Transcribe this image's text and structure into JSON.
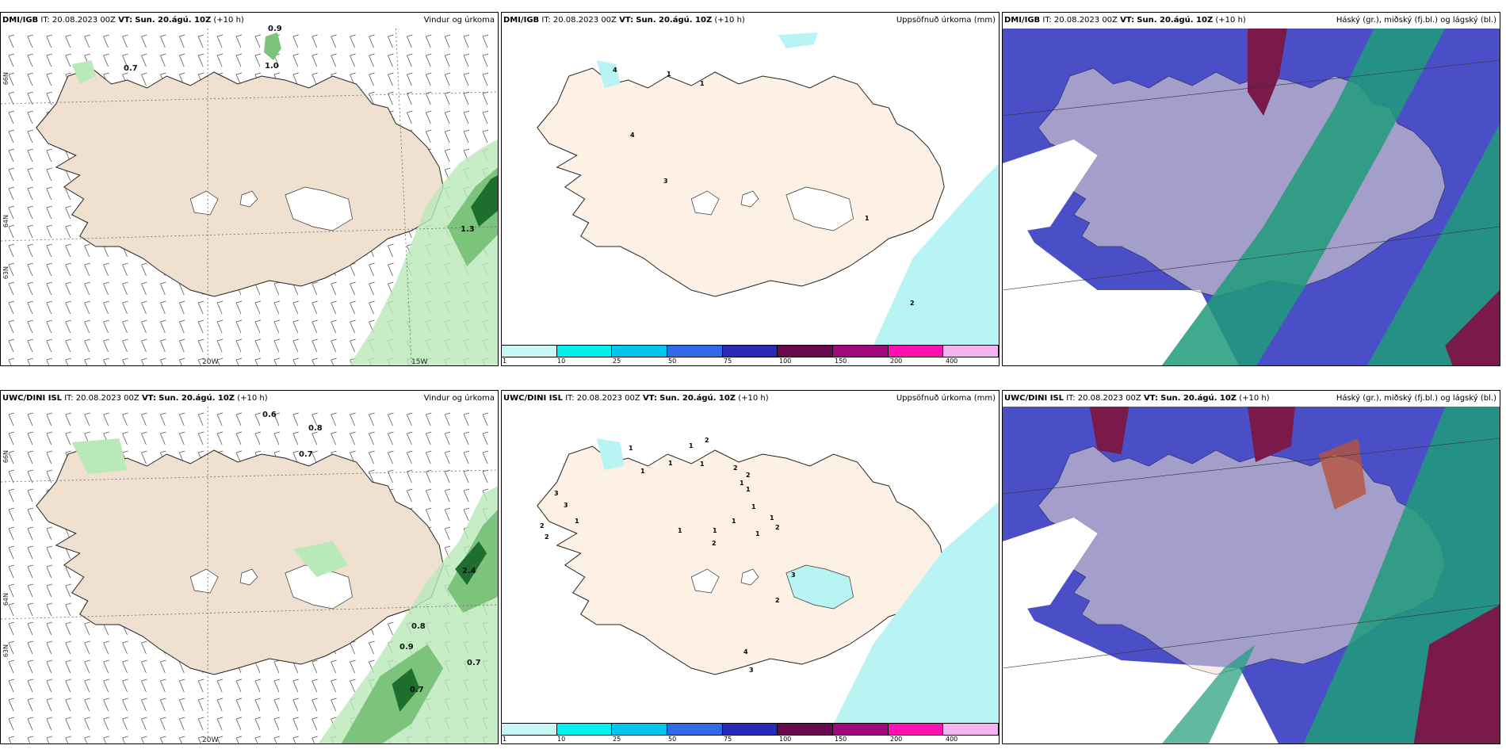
{
  "panels": [
    {
      "left_title": "DMI/IGB",
      "it": "IT: 20.08.2023 00Z",
      "vt_label": "VT:",
      "vt": "Sun. 20.ágú. 10Z",
      "lead": "(+10 h)",
      "right_title": "Vindur og úrkoma"
    },
    {
      "left_title": "DMI/IGB",
      "it": "IT: 20.08.2023 00Z",
      "vt_label": "VT:",
      "vt": "Sun. 20.ágú. 10Z",
      "lead": "(+10 h)",
      "right_title": "Uppsöfnuð úrkoma (mm)"
    },
    {
      "left_title": "DMI/IGB",
      "it": "IT: 20.08.2023 00Z",
      "vt_label": "VT:",
      "vt": "Sun. 20.ágú. 10Z",
      "lead": "(+10 h)",
      "right_title": "Háský (gr.), miðský (fj.bl.) og lágský (bl.)"
    },
    {
      "left_title": "UWC/DINI ISL",
      "it": "IT: 20.08.2023 00Z",
      "vt_label": "VT:",
      "vt": "Sun. 20.ágú. 10Z",
      "lead": "(+10 h)",
      "right_title": "Vindur og úrkoma"
    },
    {
      "left_title": "UWC/DINI ISL",
      "it": "IT: 20.08.2023 00Z",
      "vt_label": "VT:",
      "vt": "Sun. 20.ágú. 10Z",
      "lead": "(+10 h)",
      "right_title": "Uppsöfnuð úrkoma (mm)"
    },
    {
      "left_title": "UWC/DINI ISL",
      "it": "IT: 20.08.2023 00Z",
      "vt_label": "VT:",
      "vt": "Sun. 20.ágú. 10Z",
      "lead": "(+10 h)",
      "right_title": "Háský (gr.), miðský (fj.bl.) og lágský (bl.)"
    }
  ],
  "axes": {
    "lat_66": "66N",
    "lat_64": "64N",
    "lat_63": "63N",
    "lon_20": "20W",
    "lon_15": "15W"
  },
  "wind_values_top": [
    "0.7",
    "1.0",
    "0.9",
    "1.3"
  ],
  "wind_values_bottom": [
    "0.6",
    "0.8",
    "0.7",
    "2.4",
    "0.8",
    "0.9",
    "0.7",
    "0.7"
  ],
  "accum_values_top": [
    "1",
    "1",
    "4",
    "4",
    "3",
    "1",
    "2"
  ],
  "accum_values_bottom": [
    "1",
    "1",
    "1",
    "2",
    "1",
    "3",
    "3",
    "2",
    "2",
    "1",
    "1",
    "2",
    "2",
    "1",
    "1",
    "1",
    "1",
    "2",
    "1",
    "2",
    "1",
    "1",
    "1",
    "3",
    "2",
    "4",
    "3"
  ],
  "colorbar": {
    "ticks": [
      "1",
      "10",
      "25",
      "50",
      "75",
      "100",
      "150",
      "200",
      "400"
    ],
    "colors": [
      "#c8f7f7",
      "#00f0f0",
      "#00c6ee",
      "#2f6ae8",
      "#2a2ab8",
      "#6a0850",
      "#a0087e",
      "#ff10b0",
      "#f4b4ee"
    ]
  },
  "colors": {
    "land": "#efe0cf",
    "sea": "#ffffff",
    "glacier": "#ffffff",
    "precip_light": "#b9e8b9",
    "precip_mid": "#7cc47c",
    "precip_dark": "#1e6f2e",
    "cloud_high": "#4a4fc8",
    "cloud_mid": "#1f9b7a",
    "cloud_low": "#7a1a4a"
  }
}
